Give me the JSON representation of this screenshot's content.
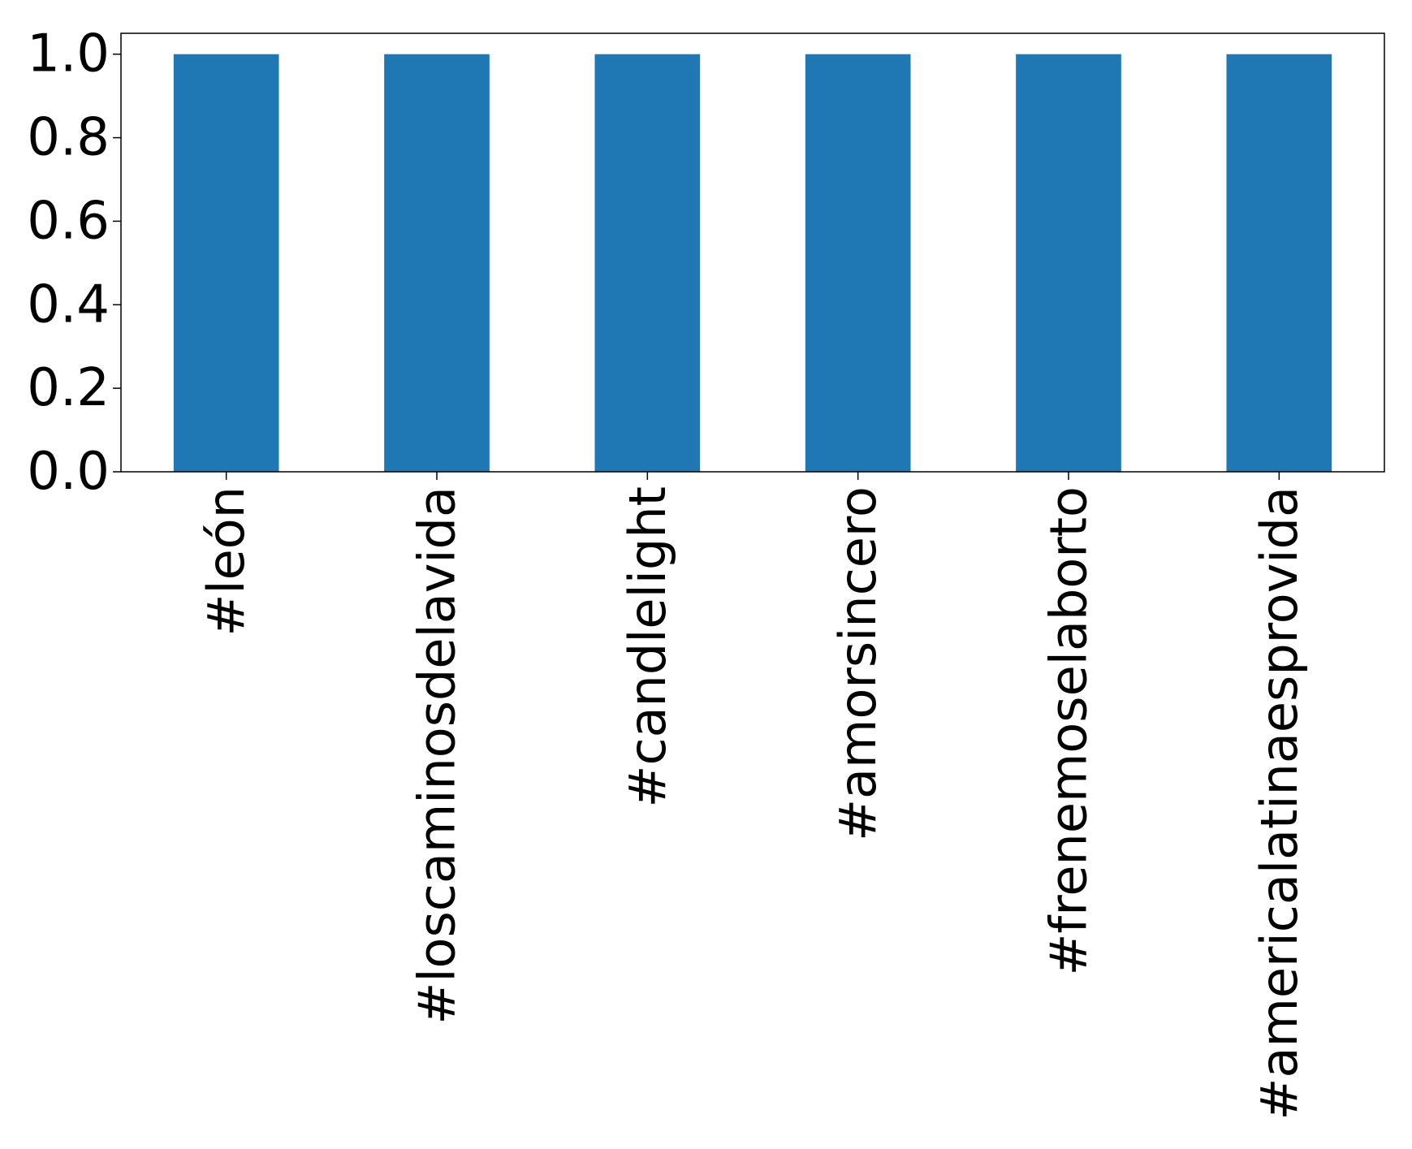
{
  "chart_data": {
    "type": "bar",
    "title": "",
    "xlabel": "",
    "ylabel": "",
    "categories": [
      "#león",
      "#loscaminosdelavida",
      "#candlelight",
      "#amorsincero",
      "#frenemoselaborto",
      "#americalatinaesprovida"
    ],
    "values": [
      1.0,
      1.0,
      1.0,
      1.0,
      1.0,
      1.0
    ],
    "ylim": [
      0,
      1.05
    ],
    "yticks": [
      0.0,
      0.2,
      0.4,
      0.6,
      0.8,
      1.0
    ],
    "ytick_labels": [
      "0.0",
      "0.2",
      "0.4",
      "0.6",
      "0.8",
      "1.0"
    ],
    "bar_color": "#1f77b4",
    "grid": false,
    "legend": "none"
  }
}
